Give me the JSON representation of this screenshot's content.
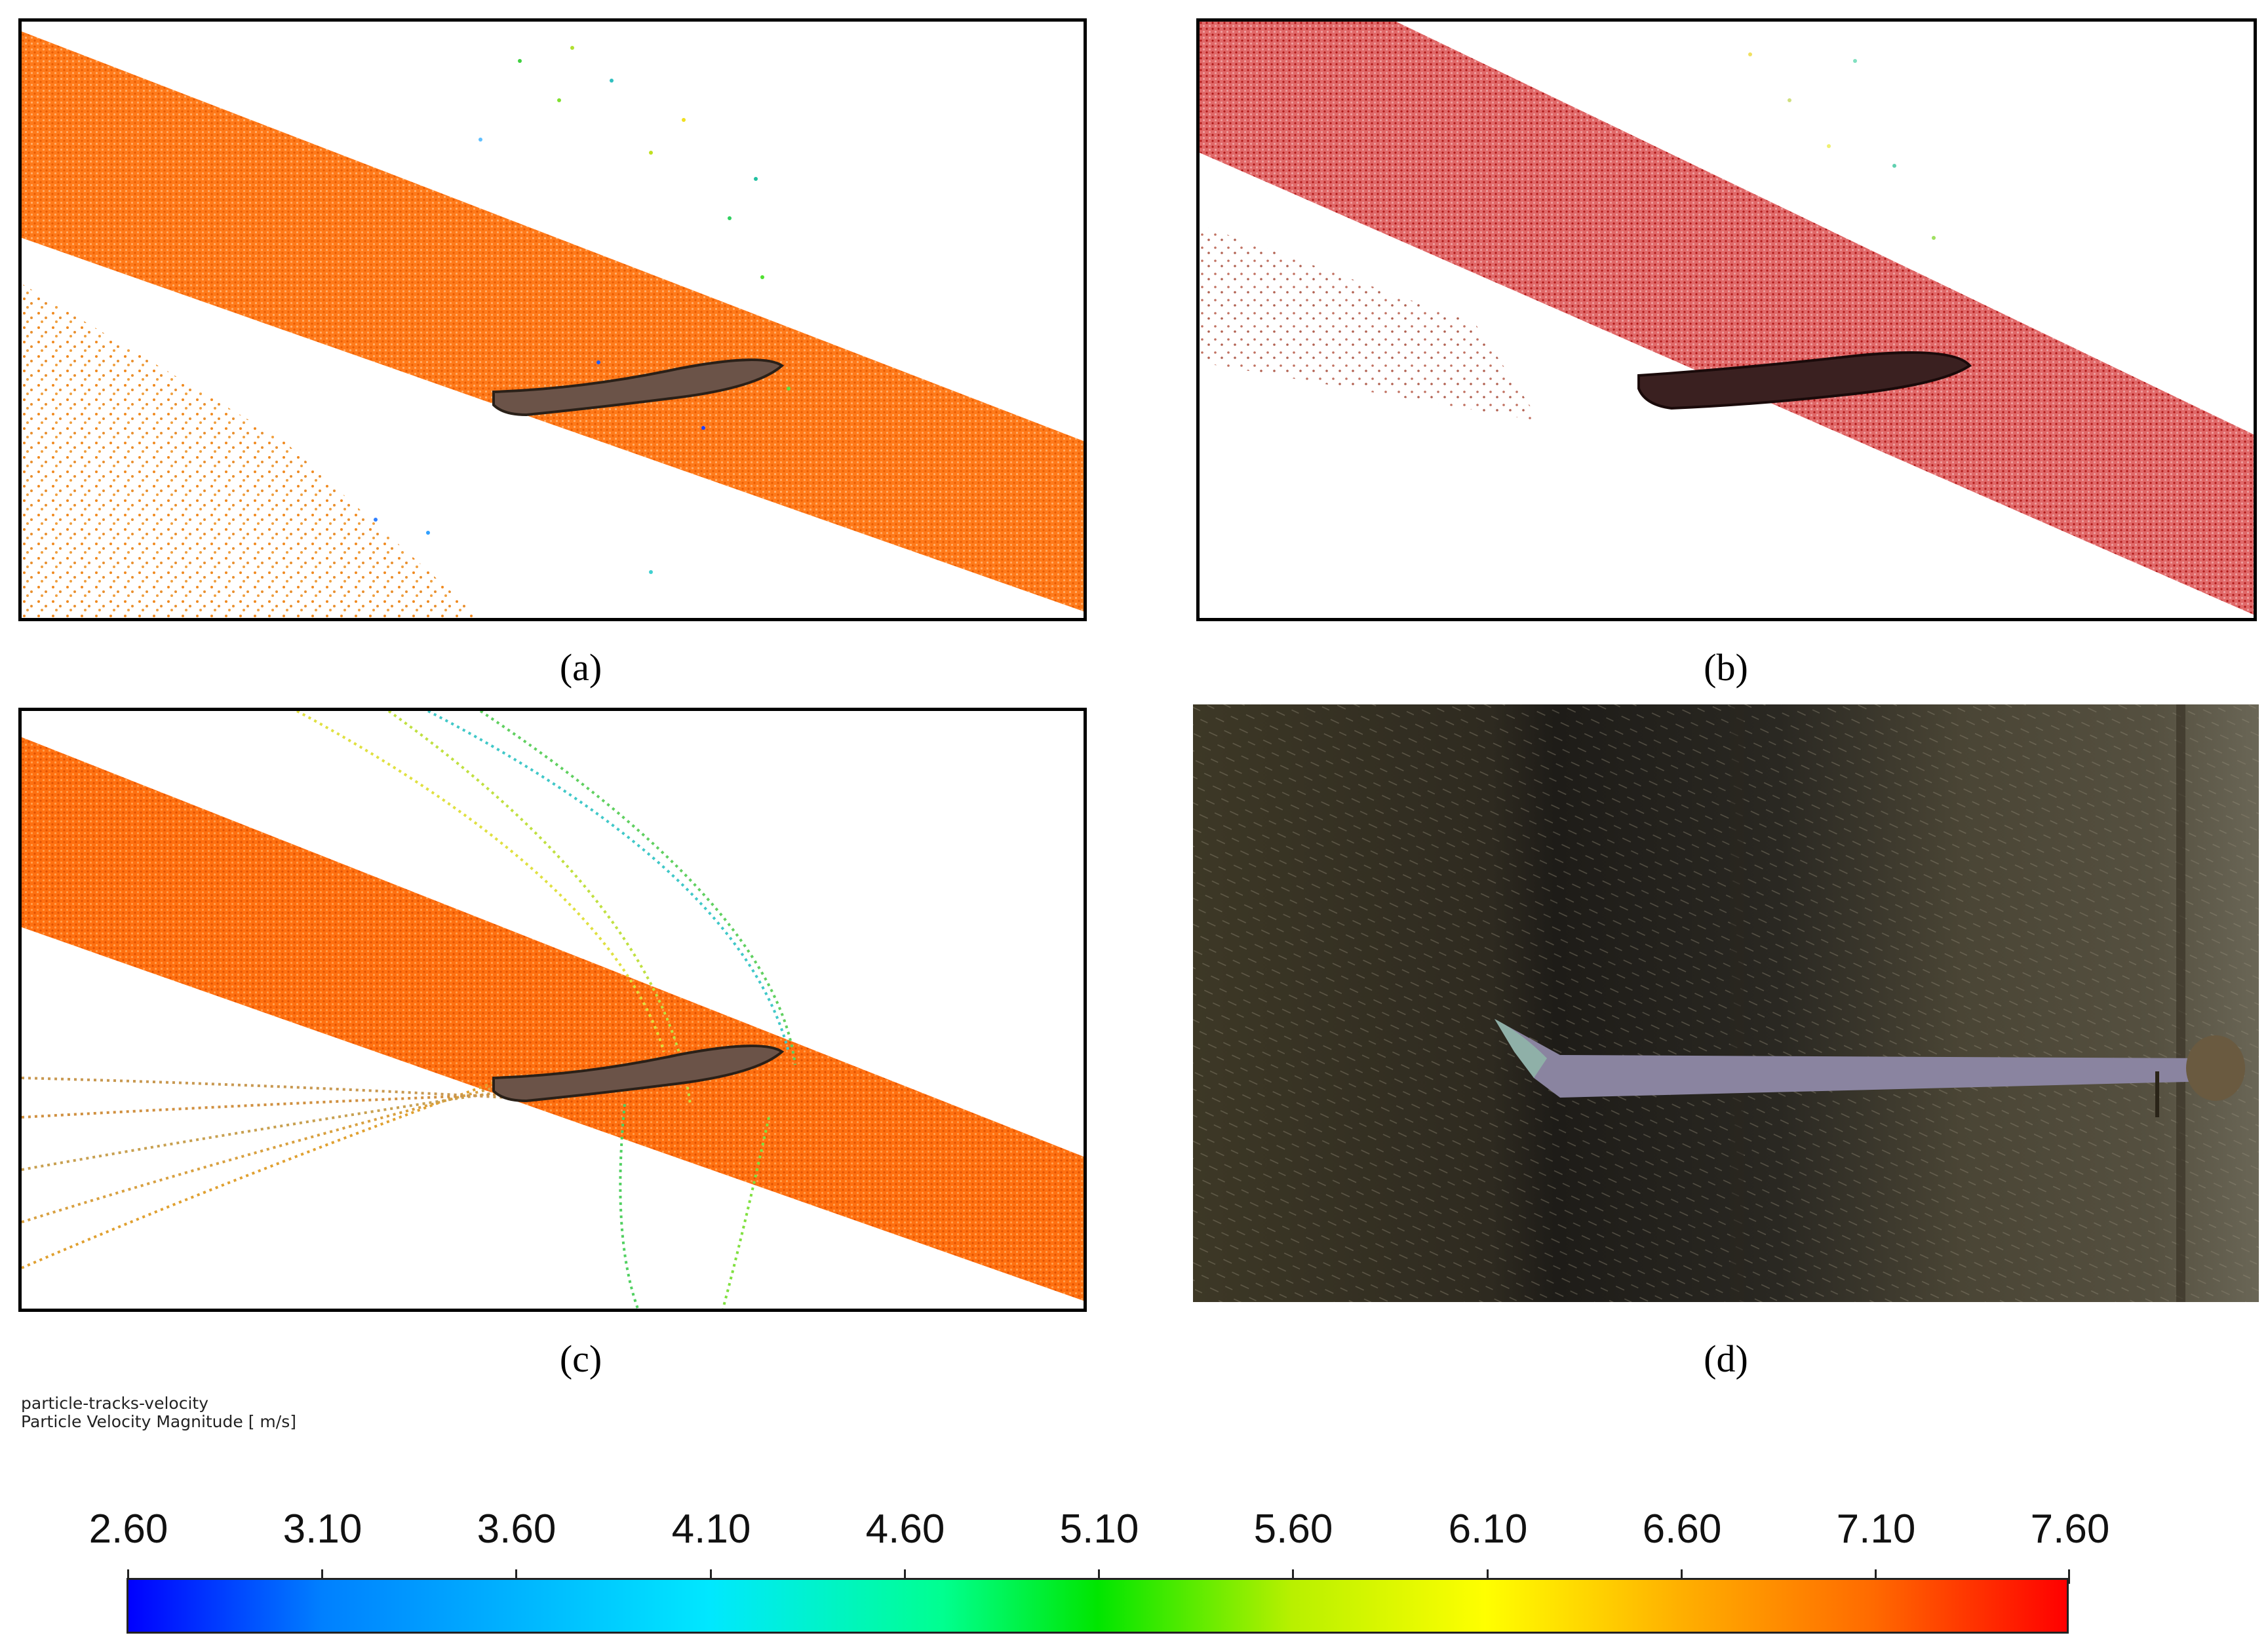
{
  "panels": [
    {
      "id": "a",
      "caption": "(a)"
    },
    {
      "id": "b",
      "caption": "(b)"
    },
    {
      "id": "c",
      "caption": "(c)"
    },
    {
      "id": "d",
      "caption": "(d)"
    }
  ],
  "legend": {
    "title": "particle-tracks-velocity",
    "variable": "Particle Velocity Magnitude [ m/s]"
  },
  "colorbar": {
    "ticks": [
      "2.60",
      "3.10",
      "3.60",
      "4.10",
      "4.60",
      "5.10",
      "5.60",
      "6.10",
      "6.60",
      "7.10",
      "7.60"
    ],
    "min": 2.6,
    "max": 7.6,
    "colors": [
      "#0000ff",
      "#00e8ff",
      "#00e600",
      "#ffff00",
      "#ff6a00",
      "#ff0000"
    ]
  },
  "colors": {
    "spray_orange": "#ff6a00",
    "spray_red": "#c8282a",
    "airfoil": "#6b5348",
    "photo_bg": "#3a3428"
  }
}
